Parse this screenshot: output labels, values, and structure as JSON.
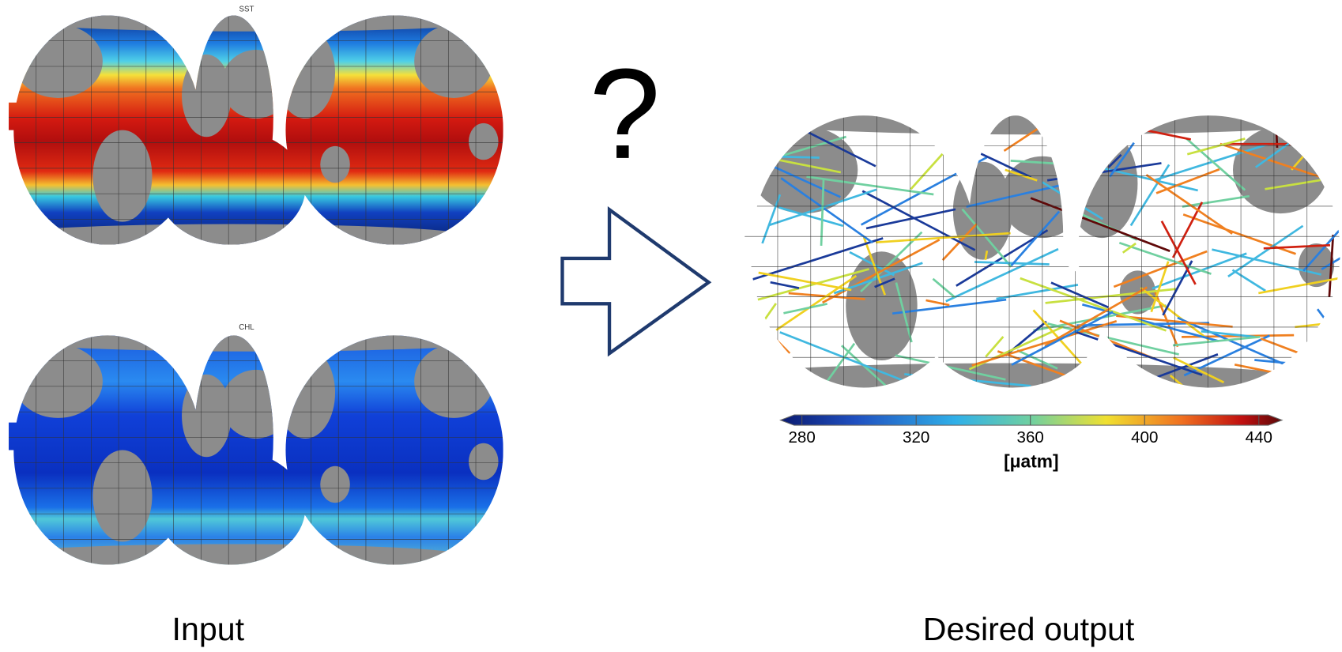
{
  "input_maps": [
    {
      "label": "SST"
    },
    {
      "label": "CHL"
    }
  ],
  "question": "?",
  "colorbar": {
    "ticks": [
      280,
      320,
      360,
      400,
      440
    ],
    "unit": "[μatm]"
  },
  "captions": {
    "input": "Input",
    "output": "Desired output"
  }
}
